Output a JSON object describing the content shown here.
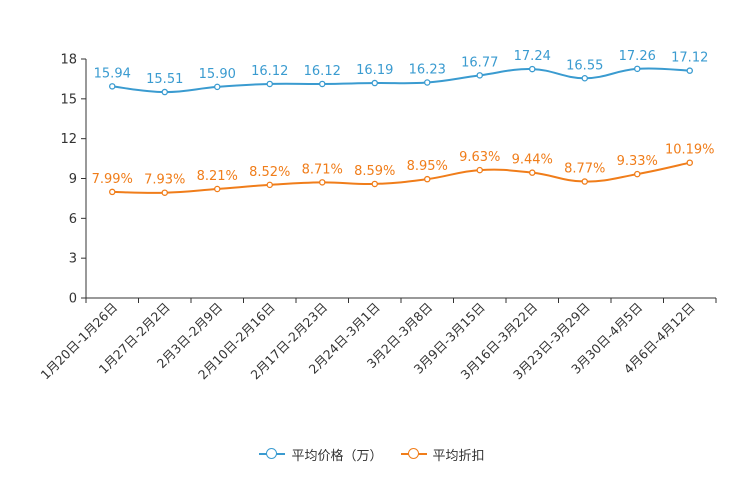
{
  "chart_data": {
    "type": "line",
    "categories": [
      "1月20日-1月26日",
      "1月27日-2月2日",
      "2月3日-2月9日",
      "2月10日-2月16日",
      "2月17日-2月23日",
      "2月24日-3月1日",
      "3月2日-3月8日",
      "3月9日-3月15日",
      "3月16日-3月22日",
      "3月23日-3月29日",
      "3月30日-4月5日",
      "4月6日-4月12日"
    ],
    "ylim": [
      0,
      18
    ],
    "yticks": [
      0,
      3,
      6,
      9,
      12,
      15,
      18
    ],
    "series": [
      {
        "name": "平均价格（万）",
        "color": "#3a9bd0",
        "values": [
          15.94,
          15.51,
          15.9,
          16.12,
          16.12,
          16.19,
          16.23,
          16.77,
          17.24,
          16.55,
          17.26,
          17.12
        ],
        "labels": [
          "15.94",
          "15.51",
          "15.90",
          "16.12",
          "16.12",
          "16.19",
          "16.23",
          "16.77",
          "17.24",
          "16.55",
          "17.26",
          "17.12"
        ]
      },
      {
        "name": "平均折扣",
        "color": "#f07d1a",
        "values": [
          7.99,
          7.93,
          8.21,
          8.52,
          8.71,
          8.59,
          8.95,
          9.63,
          9.44,
          8.77,
          9.33,
          10.19
        ],
        "labels": [
          "7.99%",
          "7.93%",
          "8.21%",
          "8.52%",
          "8.71%",
          "8.59%",
          "8.95%",
          "9.63%",
          "9.44%",
          "8.77%",
          "9.33%",
          "10.19%"
        ]
      }
    ],
    "legend_position": "bottom-center"
  }
}
